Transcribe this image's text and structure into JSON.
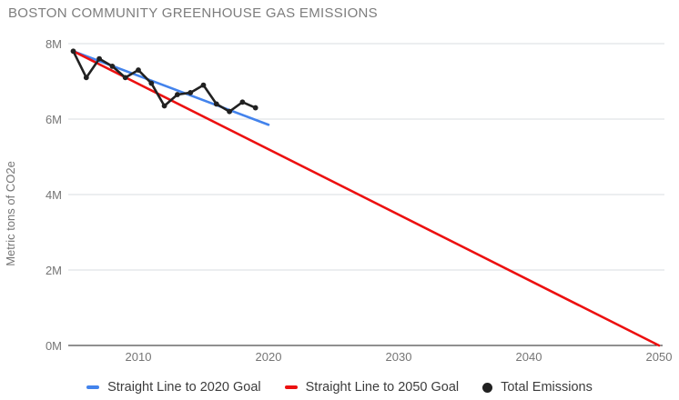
{
  "chart": {
    "title": "BOSTON COMMUNITY GREENHOUSE GAS EMISSIONS",
    "y_axis_title": "Metric tons of CO2e"
  },
  "chart_data": {
    "type": "line",
    "title": "BOSTON COMMUNITY GREENHOUSE GAS EMISSIONS",
    "xlabel": "",
    "ylabel": "Metric tons of CO2e",
    "xlim": [
      2005,
      2050
    ],
    "ylim": [
      0,
      8000000
    ],
    "grid": true,
    "legend_position": "bottom",
    "x_ticks": [
      "2010",
      "2020",
      "2030",
      "2040",
      "2050"
    ],
    "x_tick_values": [
      2010,
      2020,
      2030,
      2040,
      2050
    ],
    "y_ticks": [
      "8M",
      "6M",
      "4M",
      "2M",
      "0M"
    ],
    "y_tick_values": [
      8000000,
      6000000,
      4000000,
      2000000,
      0
    ],
    "series": [
      {
        "name": "Straight Line to 2020 Goal",
        "color": "#4383ec",
        "marker": "dash",
        "points": false,
        "x": [
          2005,
          2020
        ],
        "values": [
          7800000,
          5850000
        ]
      },
      {
        "name": "Straight Line to 2050 Goal",
        "color": "#ec1010",
        "marker": "dash",
        "points": false,
        "x": [
          2005,
          2050
        ],
        "values": [
          7800000,
          0
        ]
      },
      {
        "name": "Total Emissions",
        "color": "#212121",
        "marker": "circle",
        "points": true,
        "x": [
          2005,
          2006,
          2007,
          2008,
          2009,
          2010,
          2011,
          2012,
          2013,
          2014,
          2015,
          2016,
          2017,
          2018,
          2019
        ],
        "values": [
          7800000,
          7100000,
          7600000,
          7400000,
          7100000,
          7300000,
          6950000,
          6350000,
          6650000,
          6700000,
          6900000,
          6400000,
          6200000,
          6450000,
          6300000
        ]
      }
    ],
    "colors": {
      "grid": "#dadce0",
      "axis": "#222222",
      "tick_text": "#757575",
      "title_text": "#7d7d7d",
      "legend_text": "#3c3c3c"
    }
  }
}
